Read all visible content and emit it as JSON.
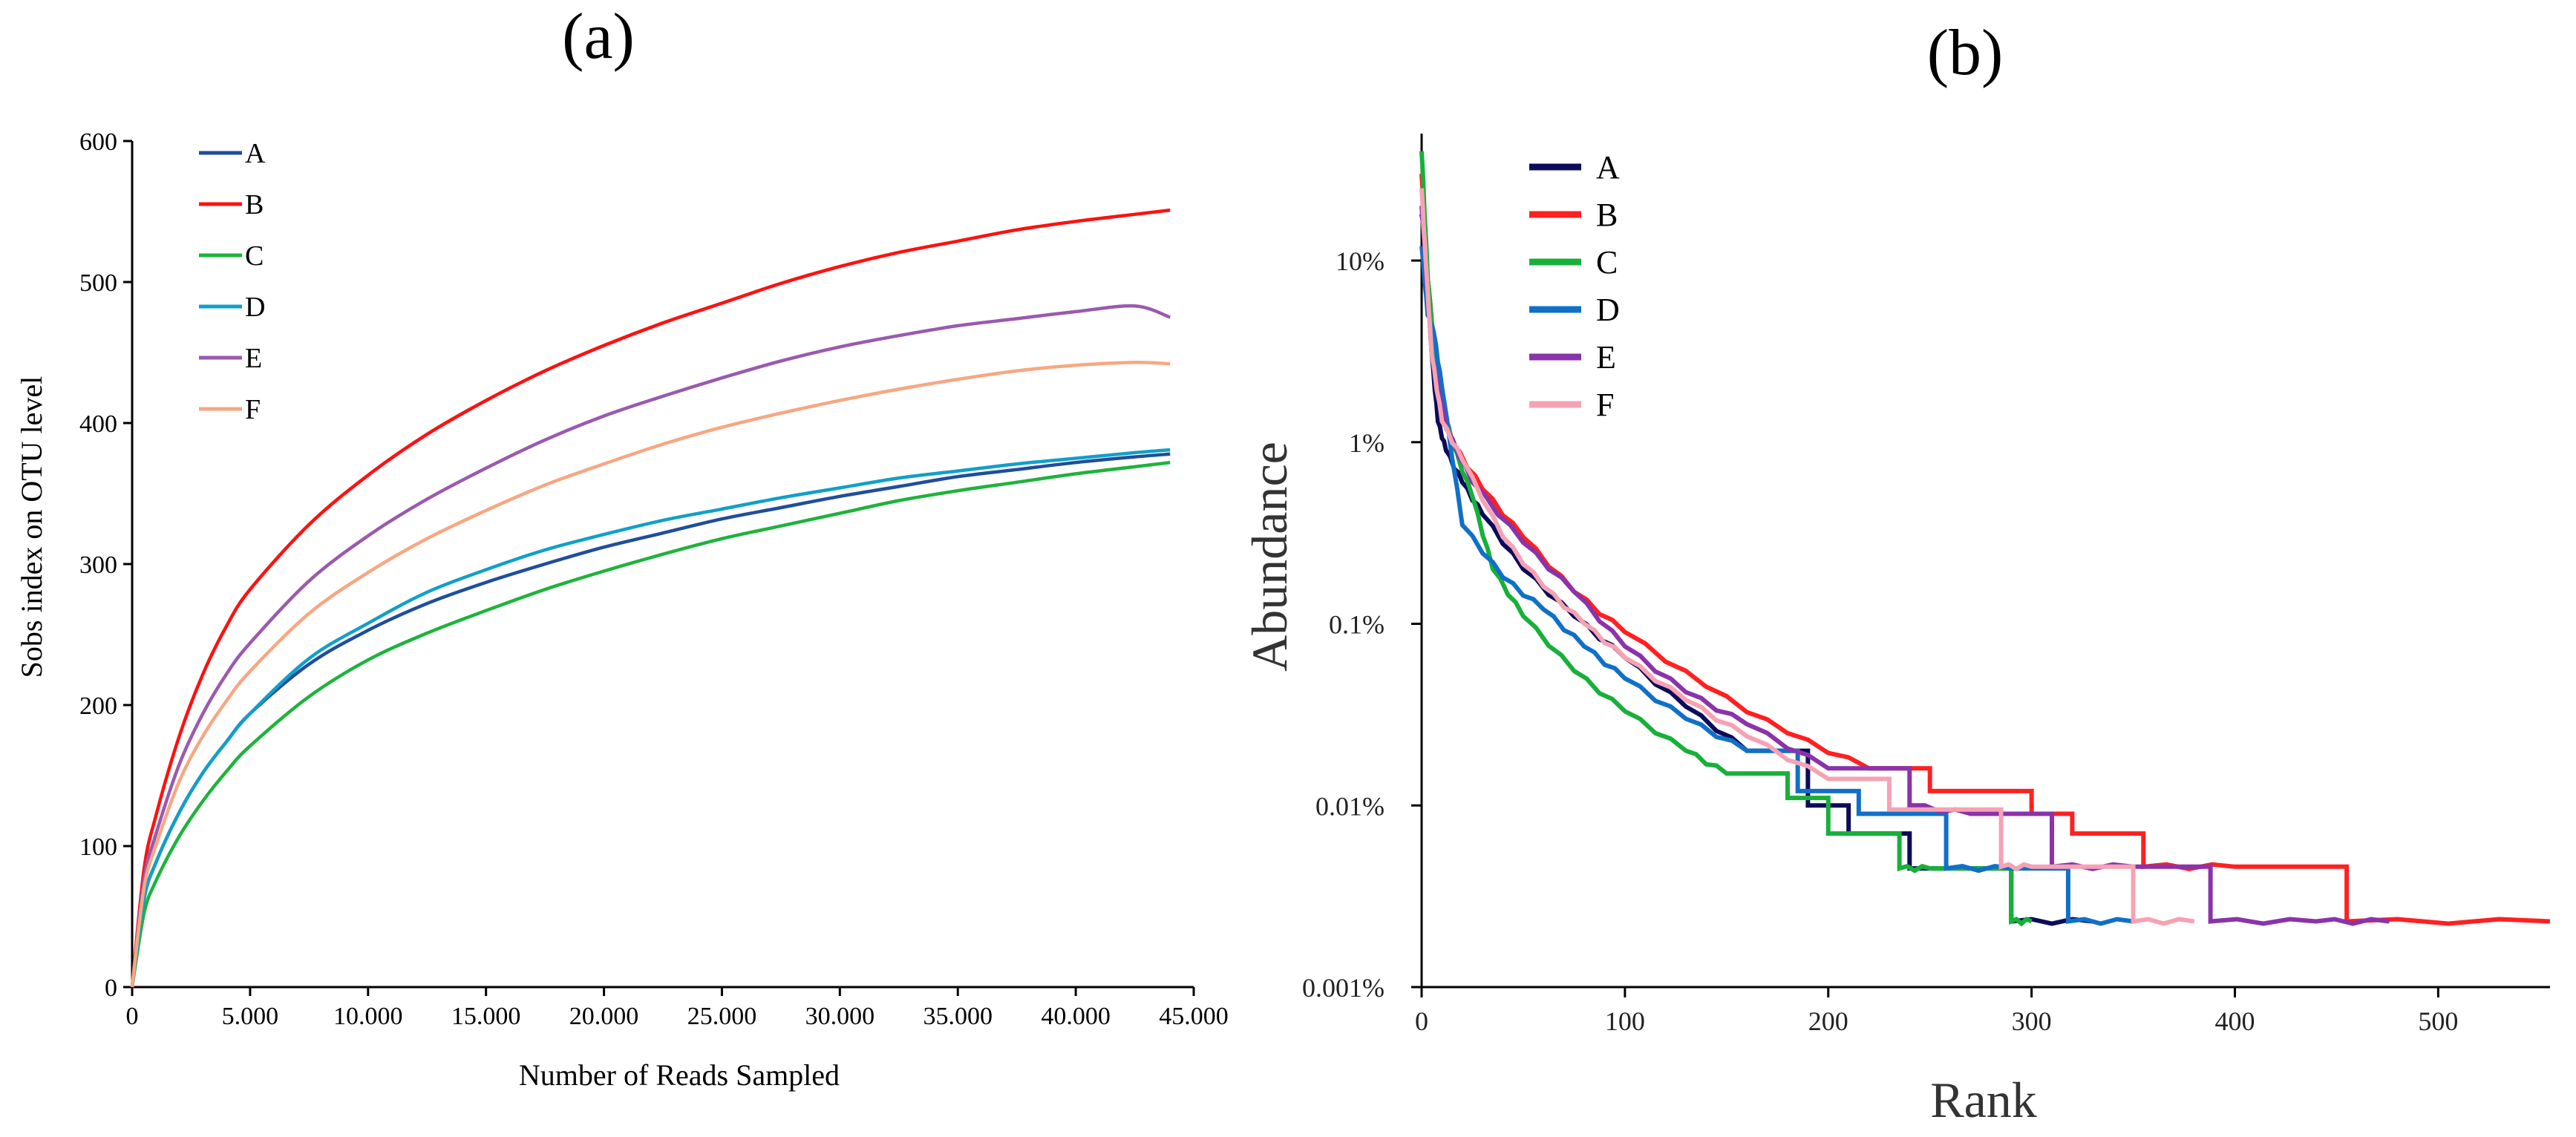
{
  "chart_data": [
    {
      "panel_label": "(a)",
      "type": "line",
      "title": "",
      "xlabel": "Number of Reads Sampled",
      "ylabel": "Sobs index on OTU level",
      "xlim": [
        0,
        45000
      ],
      "ylim": [
        0,
        600
      ],
      "x_ticks": [
        0,
        5000,
        10000,
        15000,
        20000,
        25000,
        30000,
        35000,
        40000,
        45000
      ],
      "x_tick_labels": [
        "0",
        "5.000",
        "10.000",
        "15.000",
        "20.000",
        "25.000",
        "30.000",
        "35.000",
        "40.000",
        "45.000"
      ],
      "y_ticks": [
        0,
        100,
        200,
        300,
        400,
        500,
        600
      ],
      "y_tick_labels": [
        "0",
        "100",
        "200",
        "300",
        "400",
        "500",
        "600"
      ],
      "legend_position": "top-left",
      "x": [
        0,
        500,
        1000,
        2000,
        3000,
        4000,
        5000,
        7500,
        10000,
        12500,
        15000,
        17500,
        20000,
        22500,
        25000,
        27500,
        30000,
        32500,
        35000,
        37500,
        40000,
        42500,
        44000
      ],
      "series": [
        {
          "name": "A",
          "color": "#1f4e9c",
          "values": [
            0,
            62,
            88,
            124,
            152,
            174,
            194,
            229,
            253,
            272,
            287,
            300,
            312,
            322,
            332,
            340,
            348,
            355,
            362,
            367,
            372,
            376,
            378
          ]
        },
        {
          "name": "B",
          "color": "#ff1010",
          "values": [
            0,
            83,
            121,
            178,
            222,
            256,
            282,
            328,
            363,
            392,
            416,
            437,
            455,
            471,
            485,
            499,
            511,
            521,
            529,
            537,
            543,
            548,
            551
          ]
        },
        {
          "name": "C",
          "color": "#1db33c",
          "values": [
            0,
            52,
            75,
            107,
            132,
            153,
            171,
            206,
            232,
            251,
            267,
            282,
            295,
            307,
            318,
            327,
            336,
            345,
            352,
            358,
            364,
            369,
            372
          ]
        },
        {
          "name": "D",
          "color": "#10a0c8",
          "values": [
            0,
            62,
            88,
            124,
            152,
            174,
            194,
            233,
            258,
            280,
            296,
            310,
            321,
            331,
            339,
            347,
            354,
            361,
            366,
            371,
            375,
            379,
            381
          ]
        },
        {
          "name": "E",
          "color": "#9a5aae",
          "values": [
            0,
            76,
            108,
            158,
            194,
            222,
            244,
            288,
            320,
            346,
            368,
            388,
            405,
            419,
            432,
            444,
            454,
            462,
            469,
            474,
            479,
            483,
            475
          ]
        },
        {
          "name": "F",
          "color": "#f7a782",
          "values": [
            0,
            70,
            100,
            146,
            178,
            203,
            224,
            265,
            294,
            318,
            338,
            356,
            371,
            385,
            397,
            407,
            416,
            424,
            431,
            437,
            441,
            443,
            442
          ]
        }
      ]
    },
    {
      "panel_label": "(b)",
      "type": "line",
      "title": "",
      "xlabel": "Rank",
      "ylabel": "Abundance",
      "y_scale": "log",
      "xlim": [
        0,
        555
      ],
      "ylim": [
        0.001,
        50
      ],
      "x_ticks": [
        0,
        100,
        200,
        300,
        400,
        500
      ],
      "x_tick_labels": [
        "0",
        "100",
        "200",
        "300",
        "400",
        "500"
      ],
      "y_ticks": [
        0.001,
        0.01,
        0.1,
        1,
        10
      ],
      "y_tick_labels": [
        "0.001%",
        "0.01%",
        "0.1%",
        "1%",
        "10%"
      ],
      "legend_position": "top-left",
      "series": [
        {
          "name": "A",
          "color": "#0c0c5a",
          "x": [
            0,
            2,
            5,
            8,
            12,
            20,
            30,
            50,
            75,
            100,
            130,
            160,
            190,
            210,
            240,
            290,
            330
          ],
          "values": [
            18,
            12,
            3,
            1.3,
            0.9,
            0.6,
            0.4,
            0.2,
            0.11,
            0.065,
            0.035,
            0.02,
            0.01,
            0.007,
            0.0045,
            0.0023,
            0.0023
          ]
        },
        {
          "name": "B",
          "color": "#ff2020",
          "x": [
            0,
            3,
            8,
            15,
            30,
            50,
            75,
            100,
            140,
            180,
            220,
            250,
            300,
            320,
            355,
            400,
            455,
            555
          ],
          "values": [
            30,
            8,
            2,
            1.0,
            0.55,
            0.3,
            0.15,
            0.09,
            0.045,
            0.025,
            0.016,
            0.012,
            0.009,
            0.007,
            0.0046,
            0.0046,
            0.0023,
            0.0023
          ]
        },
        {
          "name": "C",
          "color": "#17b03a",
          "x": [
            0,
            3,
            8,
            15,
            25,
            35,
            50,
            75,
            100,
            130,
            150,
            180,
            200,
            235,
            250,
            290,
            300
          ],
          "values": [
            40,
            8,
            2,
            1.0,
            0.5,
            0.2,
            0.11,
            0.055,
            0.033,
            0.02,
            0.015,
            0.011,
            0.007,
            0.0045,
            0.0045,
            0.0023,
            0.0023
          ]
        },
        {
          "name": "D",
          "color": "#1070c8",
          "x": [
            0,
            3,
            6,
            10,
            20,
            40,
            60,
            80,
            100,
            130,
            160,
            185,
            215,
            258,
            290,
            318,
            350
          ],
          "values": [
            12,
            5,
            4,
            2,
            0.35,
            0.18,
            0.12,
            0.075,
            0.05,
            0.03,
            0.02,
            0.012,
            0.009,
            0.0045,
            0.0045,
            0.0023,
            0.0023
          ]
        },
        {
          "name": "E",
          "color": "#8a33aa",
          "x": [
            0,
            5,
            12,
            25,
            50,
            75,
            100,
            130,
            160,
            200,
            240,
            270,
            310,
            350,
            388,
            440,
            476
          ],
          "values": [
            20,
            3,
            1.2,
            0.6,
            0.28,
            0.15,
            0.075,
            0.042,
            0.028,
            0.016,
            0.01,
            0.009,
            0.0046,
            0.0046,
            0.0023,
            0.0023,
            0.0023
          ]
        },
        {
          "name": "F",
          "color": "#f5a3b4",
          "x": [
            0,
            2,
            5,
            10,
            20,
            40,
            60,
            80,
            100,
            130,
            160,
            200,
            230,
            285,
            300,
            350,
            380
          ],
          "values": [
            25,
            10,
            3,
            1.3,
            0.8,
            0.3,
            0.16,
            0.1,
            0.065,
            0.038,
            0.024,
            0.014,
            0.0095,
            0.0046,
            0.0046,
            0.0023,
            0.0023
          ]
        }
      ]
    }
  ]
}
